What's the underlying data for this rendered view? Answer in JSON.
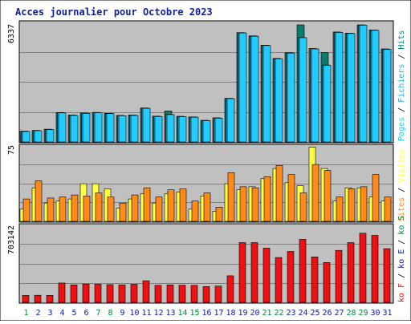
{
  "title": "Acces journalier pour Octobre 2023",
  "colors": {
    "hits": "#0b7c6b",
    "files": "#2aa4e6",
    "pages": "#22ccff",
    "visits": "#ffff44",
    "sites": "#ff8a1a",
    "kbytes": "#ee1111",
    "weekend": "#008a3a",
    "weekday": "#1020a0",
    "panel": "#c0c0c0",
    "grid": "#808080"
  },
  "panels": {
    "top": {
      "max_label": "6337",
      "legend": [
        {
          "text": "Pages",
          "color": "#22ccff"
        },
        {
          "text": " / ",
          "color": "#000000"
        },
        {
          "text": "Fichiers",
          "color": "#2aa4e6"
        },
        {
          "text": " / ",
          "color": "#000000"
        },
        {
          "text": "Hits",
          "color": "#0b7c6b"
        }
      ]
    },
    "middle": {
      "max_label": "75",
      "legend": [
        {
          "text": "Sites",
          "color": "#ff8a1a"
        },
        {
          "text": " / ",
          "color": "#000000"
        },
        {
          "text": "Visites",
          "color": "#ffff44"
        }
      ]
    },
    "bottom": {
      "max_label": "703142",
      "legend": [
        {
          "text": "ko F",
          "color": "#ee1111"
        },
        {
          "text": " / ",
          "color": "#000000"
        },
        {
          "text": "ko E",
          "color": "#1020a0"
        },
        {
          "text": " / ",
          "color": "#000000"
        },
        {
          "text": "ko S",
          "color": "#008a3a"
        }
      ]
    }
  },
  "chart_data": {
    "type": "bar",
    "title": "Acces journalier pour Octobre 2023",
    "categories": [
      "1",
      "2",
      "3",
      "4",
      "5",
      "6",
      "7",
      "8",
      "9",
      "10",
      "11",
      "12",
      "13",
      "14",
      "15",
      "16",
      "17",
      "18",
      "19",
      "20",
      "21",
      "22",
      "23",
      "24",
      "25",
      "26",
      "27",
      "28",
      "29",
      "30",
      "31"
    ],
    "weekend_days": [
      "1",
      "7",
      "8",
      "14",
      "15",
      "21",
      "22",
      "28",
      "29"
    ],
    "panels": [
      {
        "name": "top",
        "ylim": [
          0,
          6337
        ],
        "series": [
          {
            "name": "Hits",
            "values": [
              570,
              610,
              670,
              1550,
              1420,
              1530,
              1560,
              1510,
              1400,
              1420,
              1790,
              1360,
              1630,
              1350,
              1320,
              1140,
              1270,
              2300,
              5760,
              5590,
              5100,
              4400,
              4700,
              6170,
              4920,
              4700,
              5790,
              5730,
              6170,
              5900,
              4900
            ]
          },
          {
            "name": "Fichiers",
            "values": [
              560,
              600,
              660,
              1540,
              1410,
              1520,
              1550,
              1500,
              1390,
              1410,
              1780,
              1350,
              1450,
              1340,
              1310,
              1130,
              1260,
              2290,
              5750,
              5580,
              5090,
              4390,
              4690,
              5500,
              4910,
              4050,
              5780,
              5720,
              6160,
              5890,
              4890
            ]
          },
          {
            "name": "Pages",
            "values": [
              550,
              590,
              650,
              1530,
              1400,
              1510,
              1540,
              1490,
              1380,
              1400,
              1770,
              1340,
              1440,
              1330,
              1300,
              1120,
              1250,
              2280,
              5740,
              5570,
              5080,
              4380,
              4680,
              5490,
              4900,
              4040,
              5770,
              5710,
              6150,
              5880,
              4880
            ]
          }
        ]
      },
      {
        "name": "middle",
        "ylim": [
          0,
          75
        ],
        "series": [
          {
            "name": "Visites",
            "values": [
              12,
              33,
              18,
              20,
              22,
              37,
              37,
              32,
              13,
              22,
              27,
              18,
              27,
              29,
              12,
              25,
              10,
              37,
              31,
              34,
              42,
              52,
              38,
              35,
              73,
              52,
              20,
              33,
              33,
              24,
              20
            ]
          },
          {
            "name": "Sites",
            "values": [
              22,
              40,
              23,
              24,
              26,
              25,
              28,
              24,
              18,
              26,
              33,
              24,
              31,
              32,
              20,
              28,
              14,
              48,
              34,
              33,
              44,
              55,
              46,
              28,
              56,
              50,
              24,
              32,
              34,
              46,
              24
            ]
          }
        ]
      },
      {
        "name": "bottom",
        "ylim": [
          0,
          703142
        ],
        "series": [
          {
            "name": "ko F",
            "values": [
              62000,
              64000,
              63000,
              175000,
              158000,
              165000,
              164000,
              160000,
              158000,
              163000,
              195000,
              154000,
              158000,
              155000,
              154000,
              143000,
              147000,
              240000,
              540000,
              540000,
              490000,
              405000,
              460000,
              570000,
              410000,
              360000,
              470000,
              540000,
              625000,
              605000,
              485000
            ]
          }
        ]
      }
    ]
  }
}
